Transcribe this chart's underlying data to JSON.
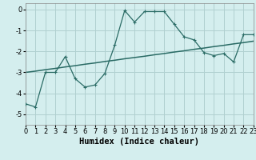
{
  "title": "",
  "xlabel": "Humidex (Indice chaleur)",
  "bg_color": "#d4eeee",
  "grid_color": "#b0d0d0",
  "line_color": "#2a6b65",
  "line1_x": [
    0,
    1,
    2,
    3,
    4,
    5,
    6,
    7,
    8,
    9,
    10,
    11,
    12,
    13,
    14,
    15,
    16,
    17,
    18,
    19,
    20,
    21,
    22,
    23
  ],
  "line1_y": [
    -4.5,
    -4.65,
    -3.0,
    -3.0,
    -2.25,
    -3.3,
    -3.7,
    -3.6,
    -3.05,
    -1.7,
    -0.05,
    -0.6,
    -0.1,
    -0.1,
    -0.1,
    -0.7,
    -1.3,
    -1.45,
    -2.05,
    -2.2,
    -2.1,
    -2.5,
    -1.2,
    -1.2
  ],
  "line2_x": [
    0,
    1,
    2,
    3,
    4,
    5,
    6,
    7,
    8,
    9,
    10,
    11,
    12,
    13,
    14,
    15,
    16,
    17,
    18,
    19,
    20,
    21,
    22,
    23
  ],
  "line2_y": [
    -3.0,
    -2.94,
    -2.87,
    -2.81,
    -2.74,
    -2.68,
    -2.61,
    -2.55,
    -2.48,
    -2.42,
    -2.35,
    -2.29,
    -2.23,
    -2.16,
    -2.1,
    -2.03,
    -1.97,
    -1.9,
    -1.84,
    -1.77,
    -1.71,
    -1.64,
    -1.58,
    -1.51
  ],
  "xlim": [
    0,
    23
  ],
  "ylim": [
    -5.5,
    0.3
  ],
  "xticks": [
    0,
    1,
    2,
    3,
    4,
    5,
    6,
    7,
    8,
    9,
    10,
    11,
    12,
    13,
    14,
    15,
    16,
    17,
    18,
    19,
    20,
    21,
    22,
    23
  ],
  "yticks": [
    0,
    -1,
    -2,
    -3,
    -4,
    -5
  ],
  "tick_fontsize": 6,
  "label_fontsize": 7.5
}
